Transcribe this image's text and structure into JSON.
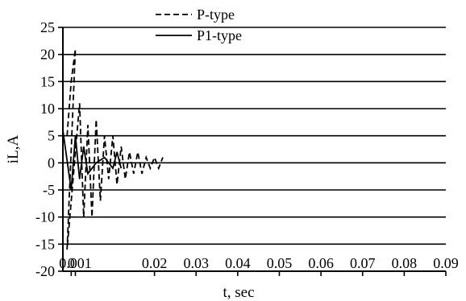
{
  "chart_data": {
    "type": "line",
    "title": "",
    "xlabel": "t, sec",
    "ylabel": "iL,A",
    "xlim": [
      -0.002,
      0.09
    ],
    "ylim": [
      -20,
      25
    ],
    "xticks": [
      0,
      0.001,
      0.02,
      0.03,
      0.04,
      0.05,
      0.06,
      0.07,
      0.08,
      0.09
    ],
    "xtick_labels": [
      "0",
      "0.001",
      "0.02",
      "0.03",
      "0.04",
      "0.05",
      "0.06",
      "0.07",
      "0.08",
      "0.09"
    ],
    "yticks": [
      25,
      20,
      15,
      10,
      5,
      0,
      -5,
      -10,
      -15,
      -20
    ],
    "ytick_labels": [
      "25",
      "20",
      "15",
      "10",
      "5",
      "0",
      "-5",
      "-10",
      "-15",
      "-20"
    ],
    "grid": "horizontal",
    "legend_position": "top",
    "series": [
      {
        "name": "P-type",
        "style": "dashed",
        "color": "#000000",
        "x": [
          -0.001,
          0.0,
          0.001,
          -0.001,
          0.002,
          0.003,
          0.004,
          0.005,
          0.006,
          0.007,
          0.008,
          0.009,
          0.01,
          0.011,
          0.012,
          0.013,
          0.014,
          0.015,
          0.016,
          0.017,
          0.018,
          0.019,
          0.02,
          0.021,
          0.022
        ],
        "y": [
          5,
          15,
          21,
          -16,
          11,
          -10,
          7,
          -10,
          8,
          -7,
          5,
          -3,
          5,
          -4,
          3,
          -3,
          2,
          -2,
          2,
          -2,
          1,
          -1,
          1,
          -1,
          1
        ]
      },
      {
        "name": "P1-type",
        "style": "solid",
        "color": "#000000",
        "x": [
          -0.002,
          0.0,
          0.001,
          0.002,
          0.003,
          0.004,
          0.006,
          0.008,
          0.01,
          0.011,
          0.012
        ],
        "y": [
          6,
          -5,
          5,
          -3,
          3,
          -2,
          0,
          1,
          -1,
          2,
          -1
        ]
      }
    ],
    "annotations": []
  }
}
